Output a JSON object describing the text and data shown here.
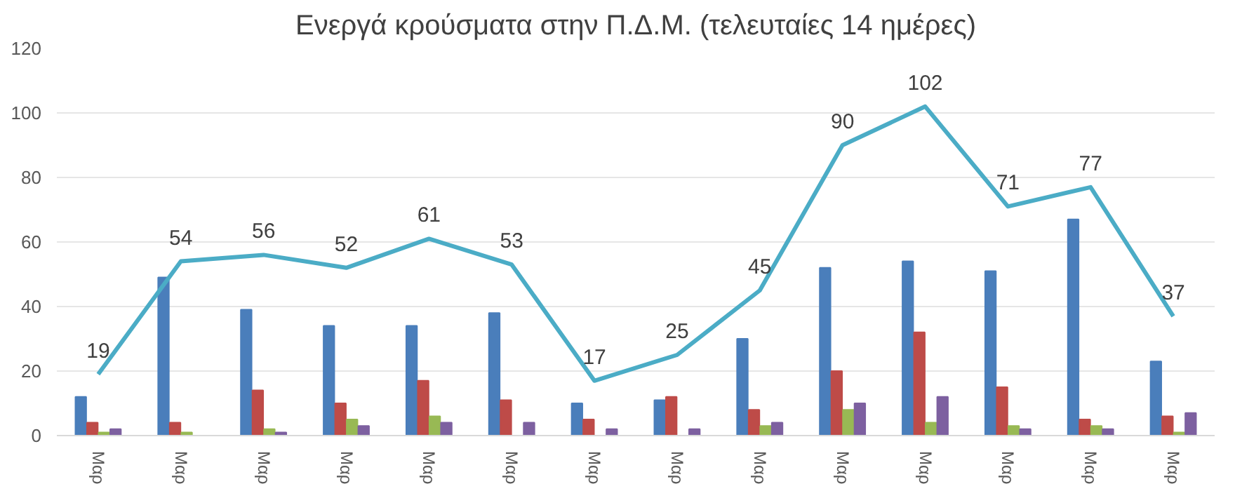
{
  "chart_data": {
    "type": "bar",
    "title": "Ενεργά κρούσματα στην Π.Δ.Μ. (τελευταίες 14 ημέρες)",
    "categories": [
      "Μαρ",
      "Μαρ",
      "Μαρ",
      "Μαρ",
      "Μαρ",
      "Μαρ",
      "Μαρ",
      "Μαρ",
      "Μαρ",
      "Μαρ",
      "Μαρ",
      "Μαρ",
      "Μαρ",
      "Μαρ"
    ],
    "series": [
      {
        "color": "#4a7ebb",
        "values": [
          12,
          49,
          39,
          34,
          34,
          38,
          10,
          11,
          30,
          52,
          54,
          51,
          67,
          23
        ]
      },
      {
        "color": "#be4b48",
        "values": [
          4,
          4,
          14,
          10,
          17,
          11,
          5,
          12,
          8,
          20,
          32,
          15,
          5,
          6
        ]
      },
      {
        "color": "#98b954",
        "values": [
          1,
          1,
          2,
          5,
          6,
          0,
          0,
          0,
          3,
          8,
          4,
          3,
          3,
          1
        ]
      },
      {
        "color": "#7d60a0",
        "values": [
          2,
          0,
          1,
          3,
          4,
          4,
          2,
          2,
          4,
          10,
          12,
          2,
          2,
          7
        ]
      },
      {
        "type": "line",
        "color": "#4bacc6",
        "values": [
          19,
          54,
          56,
          52,
          61,
          53,
          17,
          25,
          45,
          90,
          102,
          71,
          77,
          37
        ],
        "value_labels": [
          "19",
          "54",
          "56",
          "52",
          "61",
          "53",
          "17",
          "25",
          "45",
          "90",
          "102",
          "71",
          "77",
          "37"
        ]
      }
    ],
    "ylim": [
      0,
      120
    ],
    "yticks": [
      0,
      20,
      40,
      60,
      80,
      100,
      120
    ],
    "grid": "y"
  }
}
